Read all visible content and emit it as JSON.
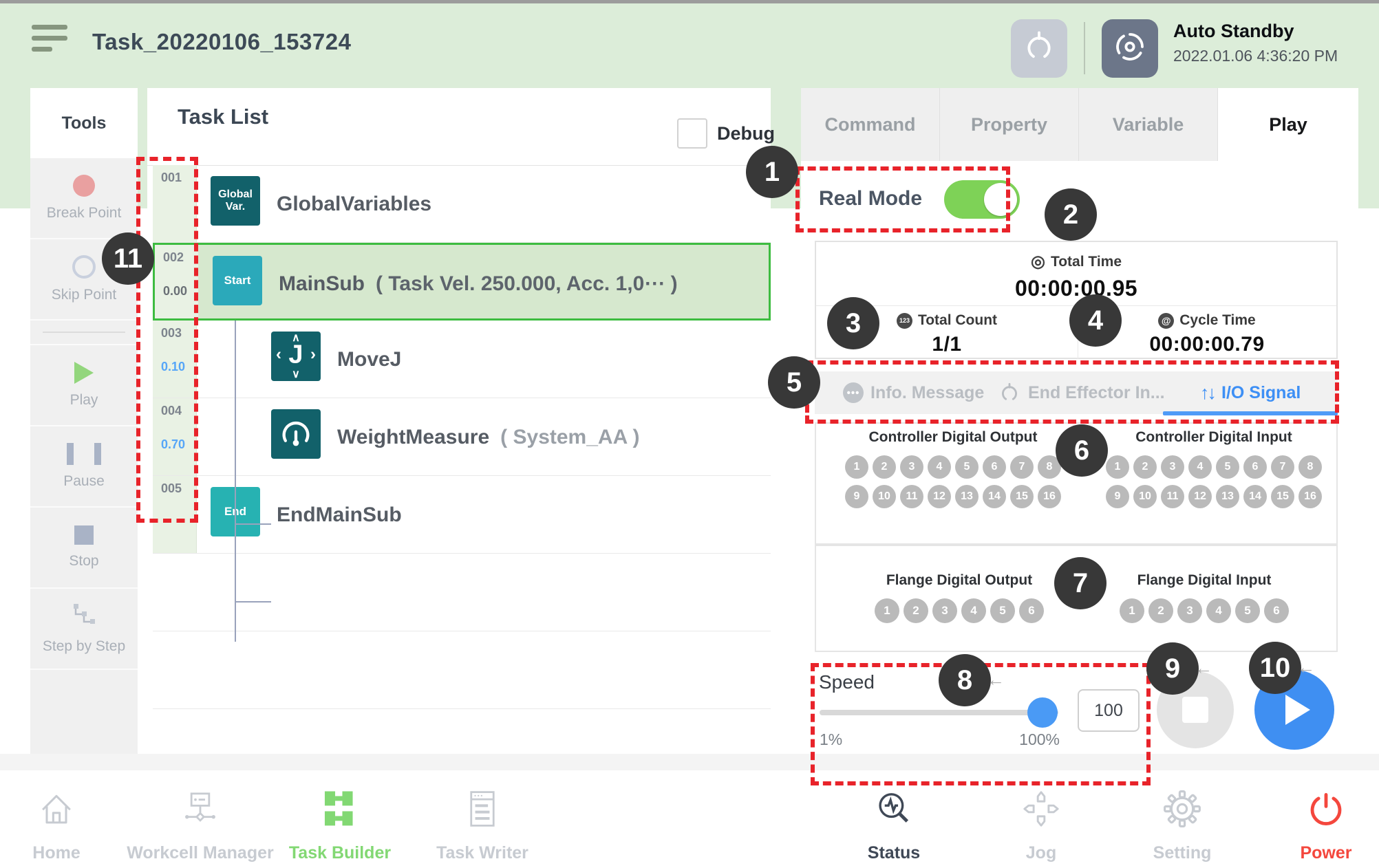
{
  "header": {
    "title": "Task_20220106_153724",
    "status": "Auto Standby",
    "datetime": "2022.01.06 4:36:20 PM"
  },
  "tools": {
    "title": "Tools",
    "items": [
      {
        "id": "break-point",
        "label": "Break Point"
      },
      {
        "id": "skip-point",
        "label": "Skip Point"
      },
      {
        "id": "play",
        "label": "Play"
      },
      {
        "id": "pause",
        "label": "Pause"
      },
      {
        "id": "stop",
        "label": "Stop"
      },
      {
        "id": "step-by-step",
        "label": "Step by Step"
      }
    ]
  },
  "task_list": {
    "title": "Task List",
    "debug_label": "Debug",
    "rows": [
      {
        "num": "001",
        "time": "",
        "time_color": "",
        "badge": "Global Var.",
        "badge_type": "dark",
        "icon": "global-var",
        "label": "GlobalVariables",
        "sub": "",
        "indent": false,
        "selected": false
      },
      {
        "num": "002",
        "time": "0.00",
        "time_color": "gray",
        "badge": "Start",
        "badge_type": "cyan",
        "icon": "start",
        "label": "MainSub",
        "sub": "( Task Vel. 250.000, Acc. 1,0⋯ )",
        "sub_style": "mid",
        "indent": false,
        "selected": true
      },
      {
        "num": "003",
        "time": "0.10",
        "time_color": "blue",
        "badge": "",
        "badge_type": "",
        "icon": "movej",
        "label": "MoveJ",
        "sub": "",
        "indent": true,
        "selected": false
      },
      {
        "num": "004",
        "time": "0.70",
        "time_color": "blue",
        "badge": "",
        "badge_type": "",
        "icon": "weight",
        "label": "WeightMeasure",
        "sub": "( System_AA )",
        "sub_style": "dim",
        "indent": true,
        "selected": false
      },
      {
        "num": "005",
        "time": "",
        "time_color": "",
        "badge": "End",
        "badge_type": "teal",
        "icon": "end",
        "label": "EndMainSub",
        "sub": "",
        "indent": false,
        "selected": false
      }
    ]
  },
  "right_panel": {
    "tabs": [
      {
        "label": "Command",
        "active": false
      },
      {
        "label": "Property",
        "active": false
      },
      {
        "label": "Variable",
        "active": false
      },
      {
        "label": "Play",
        "active": true
      }
    ],
    "real_mode_label": "Real Mode",
    "real_mode_on": true,
    "stats": {
      "total_time_label": "Total Time",
      "total_time": "00:00:00.95",
      "total_count_label": "Total Count",
      "total_count": "1/1",
      "cycle_time_label": "Cycle Time",
      "cycle_time": "00:00:00.79"
    },
    "io_tabs": [
      {
        "label": "Info. Message",
        "icon": "message-icon",
        "active": false
      },
      {
        "label": "End Effector In...",
        "icon": "gripper-icon",
        "active": false
      },
      {
        "label": "I/O Signal",
        "icon": "updown-arrows-icon",
        "active": true
      }
    ],
    "io_groups": [
      {
        "id": "controller-digital-output",
        "title": "Controller Digital Output",
        "count": 16,
        "per_row": 8
      },
      {
        "id": "controller-digital-input",
        "title": "Controller Digital Input",
        "count": 16,
        "per_row": 8
      },
      {
        "id": "flange-digital-output",
        "title": "Flange Digital Output",
        "count": 6,
        "per_row": 6
      },
      {
        "id": "flange-digital-input",
        "title": "Flange Digital Input",
        "count": 6,
        "per_row": 6
      }
    ],
    "speed": {
      "label": "Speed",
      "min": "1%",
      "max": "100%",
      "value": "100"
    }
  },
  "nav": [
    {
      "label": "Home",
      "icon": "home-icon",
      "state": "inactive"
    },
    {
      "label": "Workcell Manager",
      "icon": "workcell-manager-icon",
      "state": "inactive"
    },
    {
      "label": "Task Builder",
      "icon": "task-builder-icon",
      "state": "green"
    },
    {
      "label": "Task Writer",
      "icon": "task-writer-icon",
      "state": "inactive"
    },
    {
      "label": "Status",
      "icon": "status-icon",
      "state": "dark"
    },
    {
      "label": "Jog",
      "icon": "jog-icon",
      "state": "inactive"
    },
    {
      "label": "Setting",
      "icon": "setting-icon",
      "state": "inactive"
    },
    {
      "label": "Power",
      "icon": "power-icon",
      "state": "power"
    }
  ],
  "annotations": [
    "1",
    "2",
    "3",
    "4",
    "5",
    "6",
    "7",
    "8",
    "9",
    "10",
    "11"
  ],
  "colors": {
    "bg_green": "#dcedd9",
    "accent_green": "#3dbc40",
    "teal_dark": "#12616a",
    "teal": "#2ba9ba",
    "blue": "#3f8ff2",
    "io_tab_blue": "#3d8ff5",
    "toggle_green": "#7ed257",
    "annotation_red": "#e8232a",
    "io_circle_gray": "#bababa"
  }
}
